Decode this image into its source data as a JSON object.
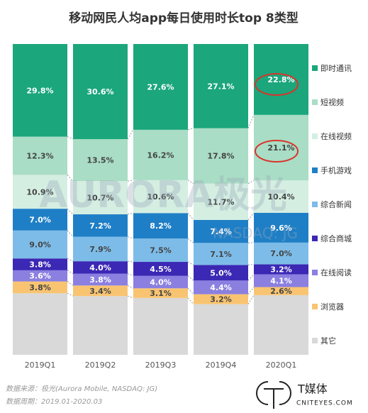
{
  "chart_data": {
    "type": "stacked-bar",
    "title": "移动网民人均app每日使用时长top 8类型",
    "categories": [
      "2019Q1",
      "2019Q2",
      "2019Q3",
      "2019Q4",
      "2020Q1"
    ],
    "series": [
      {
        "name": "其它",
        "color": "#d9d9d9",
        "values": [
          19.8,
          18.9,
          18.3,
          16.3,
          19.2
        ]
      },
      {
        "name": "浏览器",
        "color": "#f8c471",
        "values": [
          3.8,
          3.4,
          3.1,
          3.2,
          2.6
        ],
        "value_labels": [
          "3.8%",
          "3.4%",
          "3.1%",
          "3.2%",
          "2.6%"
        ]
      },
      {
        "name": "在线阅读",
        "color": "#8b7fe0",
        "values": [
          3.6,
          3.8,
          4.0,
          4.4,
          4.1
        ],
        "value_labels": [
          "3.6%",
          "3.8%",
          "4.0%",
          "4.4%",
          "4.1%"
        ]
      },
      {
        "name": "综合商城",
        "color": "#3b28b4",
        "values": [
          3.8,
          4.0,
          4.5,
          5.0,
          3.2
        ],
        "value_labels": [
          "3.8%",
          "4.0%",
          "4.5%",
          "5.0%",
          "3.2%"
        ]
      },
      {
        "name": "综合新闻",
        "color": "#7dbce8",
        "values": [
          9.0,
          7.9,
          7.5,
          7.1,
          7.0
        ],
        "value_labels": [
          "9.0%",
          "7.9%",
          "7.5%",
          "7.1%",
          "7.0%"
        ]
      },
      {
        "name": "手机游戏",
        "color": "#1f7fc6",
        "values": [
          7.0,
          7.2,
          8.2,
          7.4,
          9.6
        ],
        "value_labels": [
          "7.0%",
          "7.2%",
          "8.2%",
          "7.4%",
          "9.6%"
        ]
      },
      {
        "name": "在线视频",
        "color": "#d4eee2",
        "values": [
          10.9,
          10.7,
          10.6,
          11.7,
          10.4
        ],
        "value_labels": [
          "10.9%",
          "10.7%",
          "10.6%",
          "11.7%",
          "10.4%"
        ]
      },
      {
        "name": "短视频",
        "color": "#a9ddc5",
        "values": [
          12.3,
          13.5,
          16.2,
          17.8,
          21.1
        ],
        "value_labels": [
          "12.3%",
          "13.5%",
          "16.2%",
          "17.8%",
          "21.1%"
        ]
      },
      {
        "name": "即时通讯",
        "color": "#1ba67c",
        "values": [
          29.8,
          30.6,
          27.6,
          27.1,
          22.8
        ],
        "value_labels": [
          "29.8%",
          "30.6%",
          "27.6%",
          "27.1%",
          "22.8%"
        ]
      }
    ],
    "watermark": [
      "AURORA极光",
      "NASDAQ: JG"
    ],
    "source": "数据来源：极光(Aurora Mobile, NASDAQ: JG)",
    "period": "数据周期：2019.01-2020.03",
    "logo": [
      "T媒体",
      "CNITEYES.COM"
    ]
  }
}
